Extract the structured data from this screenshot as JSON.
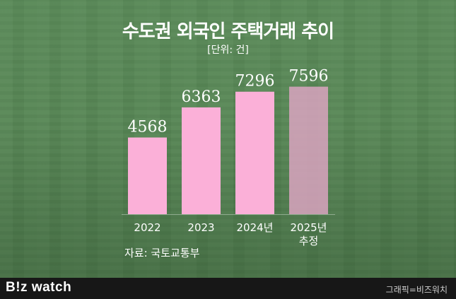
{
  "title": "수도권 외국인 주택거래 추이",
  "unit": "[단위: 건]",
  "source": "자료: 국토교통부",
  "brand": {
    "logo_prefix": "B!z",
    "logo_suffix": " watch"
  },
  "credit": "그래픽=비즈워치",
  "colors": {
    "bar": "#fbb0d8",
    "bar_estimate": "#d9a3bf"
  },
  "chart_data": {
    "type": "bar",
    "title": "수도권 외국인 주택거래 추이",
    "categories": [
      "2022",
      "2023",
      "2024년",
      "2025년\n추정"
    ],
    "values": [
      4568,
      6363,
      7296,
      7596
    ],
    "value_labels": [
      "4568",
      "6363",
      "7296",
      "7596"
    ],
    "estimated": [
      false,
      false,
      false,
      true
    ],
    "xlabel": "",
    "ylabel": "",
    "grid": false
  }
}
